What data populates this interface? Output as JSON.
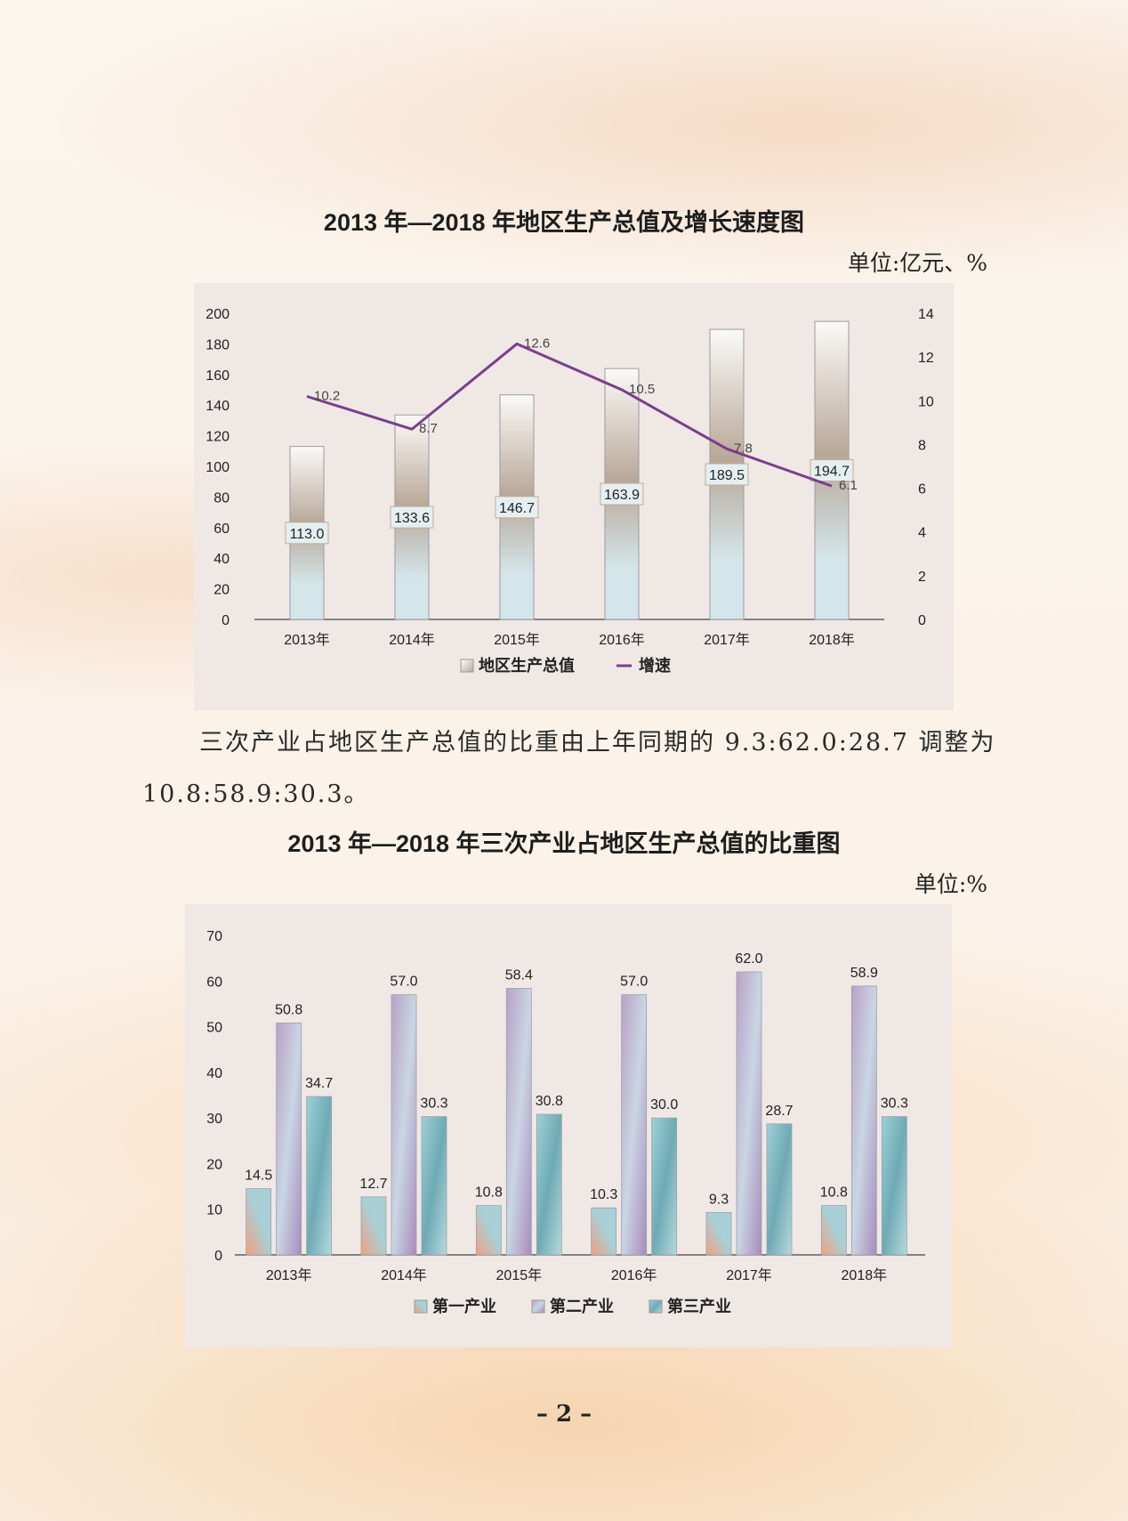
{
  "page": {
    "paragraph": "三次产业占地区生产总值的比重由上年同期的 9.3:62.0:28.7 调整为 10.8:58.9:30.3。",
    "page_number": "– 2 –"
  },
  "colors": {
    "line": "#7a3f8c",
    "bar_gdp_top": "#fbfaf7",
    "bar_gdp_mid": "#b8a798",
    "bar_gdp_bottom": "#d4e6ea",
    "primary_top": "#f2a07e",
    "primary_bottom": "#a8d0d6",
    "secondary": "#b9a1c7",
    "tertiary": "#6eaab5"
  },
  "chart_data": [
    {
      "type": "bar+line",
      "title": "2013 年—2018 年地区生产总值及增长速度图",
      "unit": "单位:亿元、%",
      "categories": [
        "2013年",
        "2014年",
        "2015年",
        "2016年",
        "2017年",
        "2018年"
      ],
      "series": [
        {
          "name": "地区生产总值",
          "type": "bar",
          "axis": "left",
          "values": [
            113.0,
            133.6,
            146.7,
            163.9,
            189.5,
            194.7
          ]
        },
        {
          "name": "增速",
          "type": "line",
          "axis": "right",
          "values": [
            10.2,
            8.7,
            12.6,
            10.5,
            7.8,
            6.1
          ]
        }
      ],
      "ylim_left": [
        0,
        200
      ],
      "yticks_left": [
        "0",
        "20",
        "40",
        "60",
        "80",
        "100",
        "120",
        "140",
        "160",
        "180",
        "200"
      ],
      "ylim_right": [
        0,
        14
      ],
      "yticks_right": [
        "0",
        "2",
        "4",
        "6",
        "8",
        "10",
        "12",
        "14"
      ],
      "legend": "bottom",
      "grid": false
    },
    {
      "type": "bar",
      "title": "2013 年—2018 年三次产业占地区生产总值的比重图",
      "unit": "单位:%",
      "categories": [
        "2013年",
        "2014年",
        "2015年",
        "2016年",
        "2017年",
        "2018年"
      ],
      "series": [
        {
          "name": "第一产业",
          "values": [
            14.5,
            12.7,
            10.8,
            10.3,
            9.3,
            10.8
          ]
        },
        {
          "name": "第二产业",
          "values": [
            50.8,
            57.0,
            58.4,
            57.0,
            62.0,
            58.9
          ]
        },
        {
          "name": "第三产业",
          "values": [
            34.7,
            30.3,
            30.8,
            30.0,
            28.7,
            30.3
          ]
        }
      ],
      "ylim": [
        0,
        70
      ],
      "yticks": [
        "0",
        "10",
        "20",
        "30",
        "40",
        "50",
        "60",
        "70"
      ],
      "legend": "bottom",
      "grid": false
    }
  ]
}
